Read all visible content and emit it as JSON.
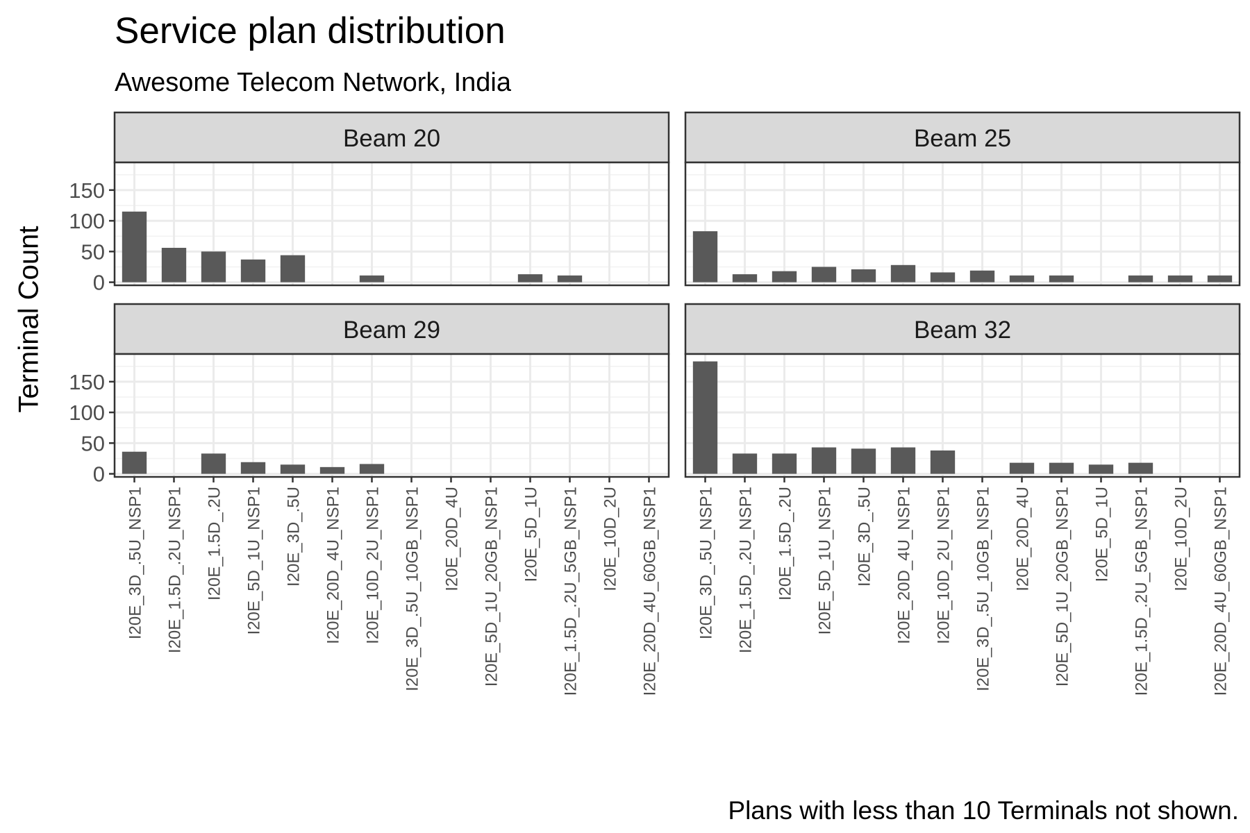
{
  "chart_data": {
    "type": "bar",
    "title": "Service plan distribution",
    "subtitle": "Awesome Telecom Network, India",
    "caption": "Plans with less than 10 Terminals not shown.",
    "ylabel": "Terminal Count",
    "xlabel": "",
    "ylim": [
      -5,
      195
    ],
    "yticks": [
      0,
      50,
      100,
      150
    ],
    "grid": true,
    "facet_layout": "2x2",
    "categories": [
      "I20E_3D_.5U_NSP1",
      "I20E_1.5D_.2U_NSP1",
      "I20E_1.5D_.2U",
      "I20E_5D_1U_NSP1",
      "I20E_3D_.5U",
      "I20E_20D_4U_NSP1",
      "I20E_10D_2U_NSP1",
      "I20E_3D_.5U_10GB_NSP1",
      "I20E_20D_4U",
      "I20E_5D_1U_20GB_NSP1",
      "I20E_5D_1U",
      "I20E_1.5D_.2U_5GB_NSP1",
      "I20E_10D_2U",
      "I20E_20D_4U_60GB_NSP1"
    ],
    "panels": [
      {
        "name": "Beam 20",
        "values": [
          115,
          56,
          50,
          37,
          44,
          null,
          11,
          null,
          null,
          null,
          13,
          11,
          null,
          null
        ]
      },
      {
        "name": "Beam 25",
        "values": [
          83,
          13,
          18,
          25,
          21,
          28,
          16,
          19,
          11,
          11,
          null,
          11,
          11,
          11
        ]
      },
      {
        "name": "Beam 29",
        "values": [
          36,
          null,
          33,
          19,
          15,
          11,
          16,
          null,
          null,
          null,
          null,
          null,
          null,
          null
        ]
      },
      {
        "name": "Beam 32",
        "values": [
          183,
          33,
          33,
          43,
          41,
          43,
          38,
          null,
          18,
          18,
          15,
          18,
          null,
          null
        ]
      }
    ]
  }
}
